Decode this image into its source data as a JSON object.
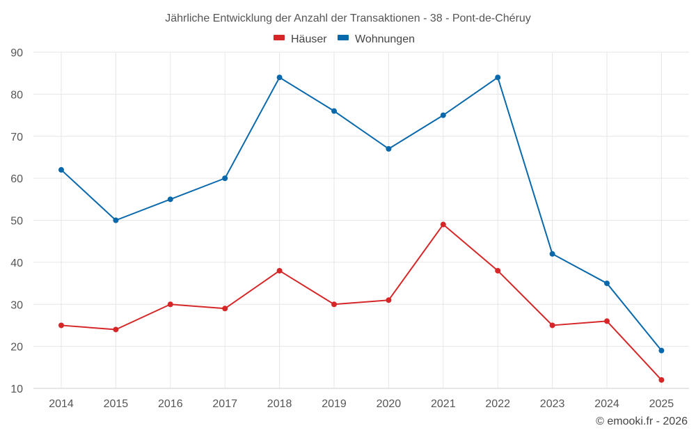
{
  "chart_data": {
    "type": "line",
    "title": "Jährliche Entwicklung der Anzahl der Transaktionen - 38 - Pont-de-Chéruy",
    "categories": [
      "2014",
      "2015",
      "2016",
      "2017",
      "2018",
      "2019",
      "2020",
      "2021",
      "2022",
      "2023",
      "2024",
      "2025"
    ],
    "series": [
      {
        "name": "Häuser",
        "color": "#d62728",
        "values": [
          25,
          24,
          30,
          29,
          38,
          30,
          31,
          49,
          38,
          25,
          26,
          12
        ]
      },
      {
        "name": "Wohnungen",
        "color": "#0868ac",
        "values": [
          62,
          50,
          55,
          60,
          84,
          76,
          67,
          75,
          84,
          42,
          35,
          19
        ]
      }
    ],
    "yticks": [
      10,
      20,
      30,
      40,
      50,
      60,
      70,
      80,
      90
    ],
    "ylim": [
      10,
      90
    ],
    "xlabel": "",
    "ylabel": "",
    "grid": true,
    "legend_position": "top-center"
  },
  "credit": "© emooki.fr - 2026"
}
